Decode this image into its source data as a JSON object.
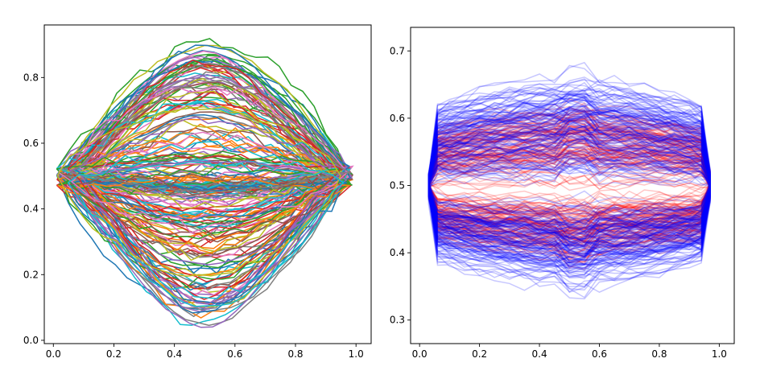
{
  "chart_data": [
    {
      "type": "line",
      "title": "",
      "xlabel": "",
      "ylabel": "",
      "xlim": [
        -0.03,
        1.05
      ],
      "ylim": [
        -0.01,
        0.96
      ],
      "xticks": [
        "0.0",
        "0.2",
        "0.4",
        "0.6",
        "0.8",
        "1.0"
      ],
      "yticks": [
        "0.0",
        "0.2",
        "0.4",
        "0.6",
        "0.8"
      ],
      "grid": false,
      "curve_count": 110,
      "description_of_data": "closed loop contours spanning x 0 to 1, centered near y=0.5; each curve has an upper arc and lower arc",
      "upper_arc_peak_y_range": [
        0.46,
        0.91
      ],
      "lower_arc_trough_y_range": [
        0.04,
        0.47
      ],
      "palette": [
        "#1f77b4",
        "#ff7f0e",
        "#2ca02c",
        "#d62728",
        "#9467bd",
        "#8c564b",
        "#e377c2",
        "#7f7f7f",
        "#bcbd22",
        "#17becf"
      ],
      "sample_x": [
        0.0,
        0.1,
        0.2,
        0.3,
        0.4,
        0.5,
        0.6,
        0.7,
        0.8,
        0.9,
        1.0
      ],
      "sample_series": [
        {
          "upper": [
            0.5,
            0.6,
            0.72,
            0.82,
            0.89,
            0.91,
            0.89,
            0.82,
            0.72,
            0.6,
            0.5
          ],
          "lower": [
            0.5,
            0.38,
            0.22,
            0.12,
            0.06,
            0.04,
            0.06,
            0.12,
            0.22,
            0.38,
            0.5
          ]
        },
        {
          "upper": [
            0.5,
            0.56,
            0.6,
            0.63,
            0.65,
            0.66,
            0.65,
            0.63,
            0.6,
            0.56,
            0.5
          ],
          "lower": [
            0.5,
            0.44,
            0.4,
            0.37,
            0.35,
            0.34,
            0.35,
            0.37,
            0.4,
            0.44,
            0.5
          ]
        },
        {
          "upper": [
            0.5,
            0.52,
            0.53,
            0.54,
            0.545,
            0.55,
            0.545,
            0.54,
            0.53,
            0.52,
            0.5
          ],
          "lower": [
            0.5,
            0.47,
            0.465,
            0.46,
            0.455,
            0.455,
            0.455,
            0.46,
            0.465,
            0.47,
            0.5
          ]
        }
      ]
    },
    {
      "type": "line",
      "title": "",
      "xlabel": "",
      "ylabel": "",
      "xlim": [
        -0.03,
        1.05
      ],
      "ylim": [
        0.265,
        0.735
      ],
      "xticks": [
        "0.0",
        "0.2",
        "0.4",
        "0.6",
        "0.8",
        "1.0"
      ],
      "yticks": [
        "0.3",
        "0.4",
        "0.5",
        "0.6",
        "0.7"
      ],
      "grid": false,
      "series": [
        {
          "name": "",
          "color": "#ff0000",
          "alpha": 0.22,
          "curve_count": 100,
          "upper_mean_y": 0.57,
          "lower_mean_y": 0.43,
          "upper_max_y": 0.71,
          "lower_min_y": 0.28
        },
        {
          "name": "",
          "color": "#0000ff",
          "alpha": 0.22,
          "curve_count": 130,
          "upper_mean_y": 0.6,
          "lower_mean_y": 0.4,
          "upper_max_y": 0.68,
          "lower_min_y": 0.32
        }
      ],
      "x_span": [
        0.03,
        0.97
      ]
    }
  ]
}
